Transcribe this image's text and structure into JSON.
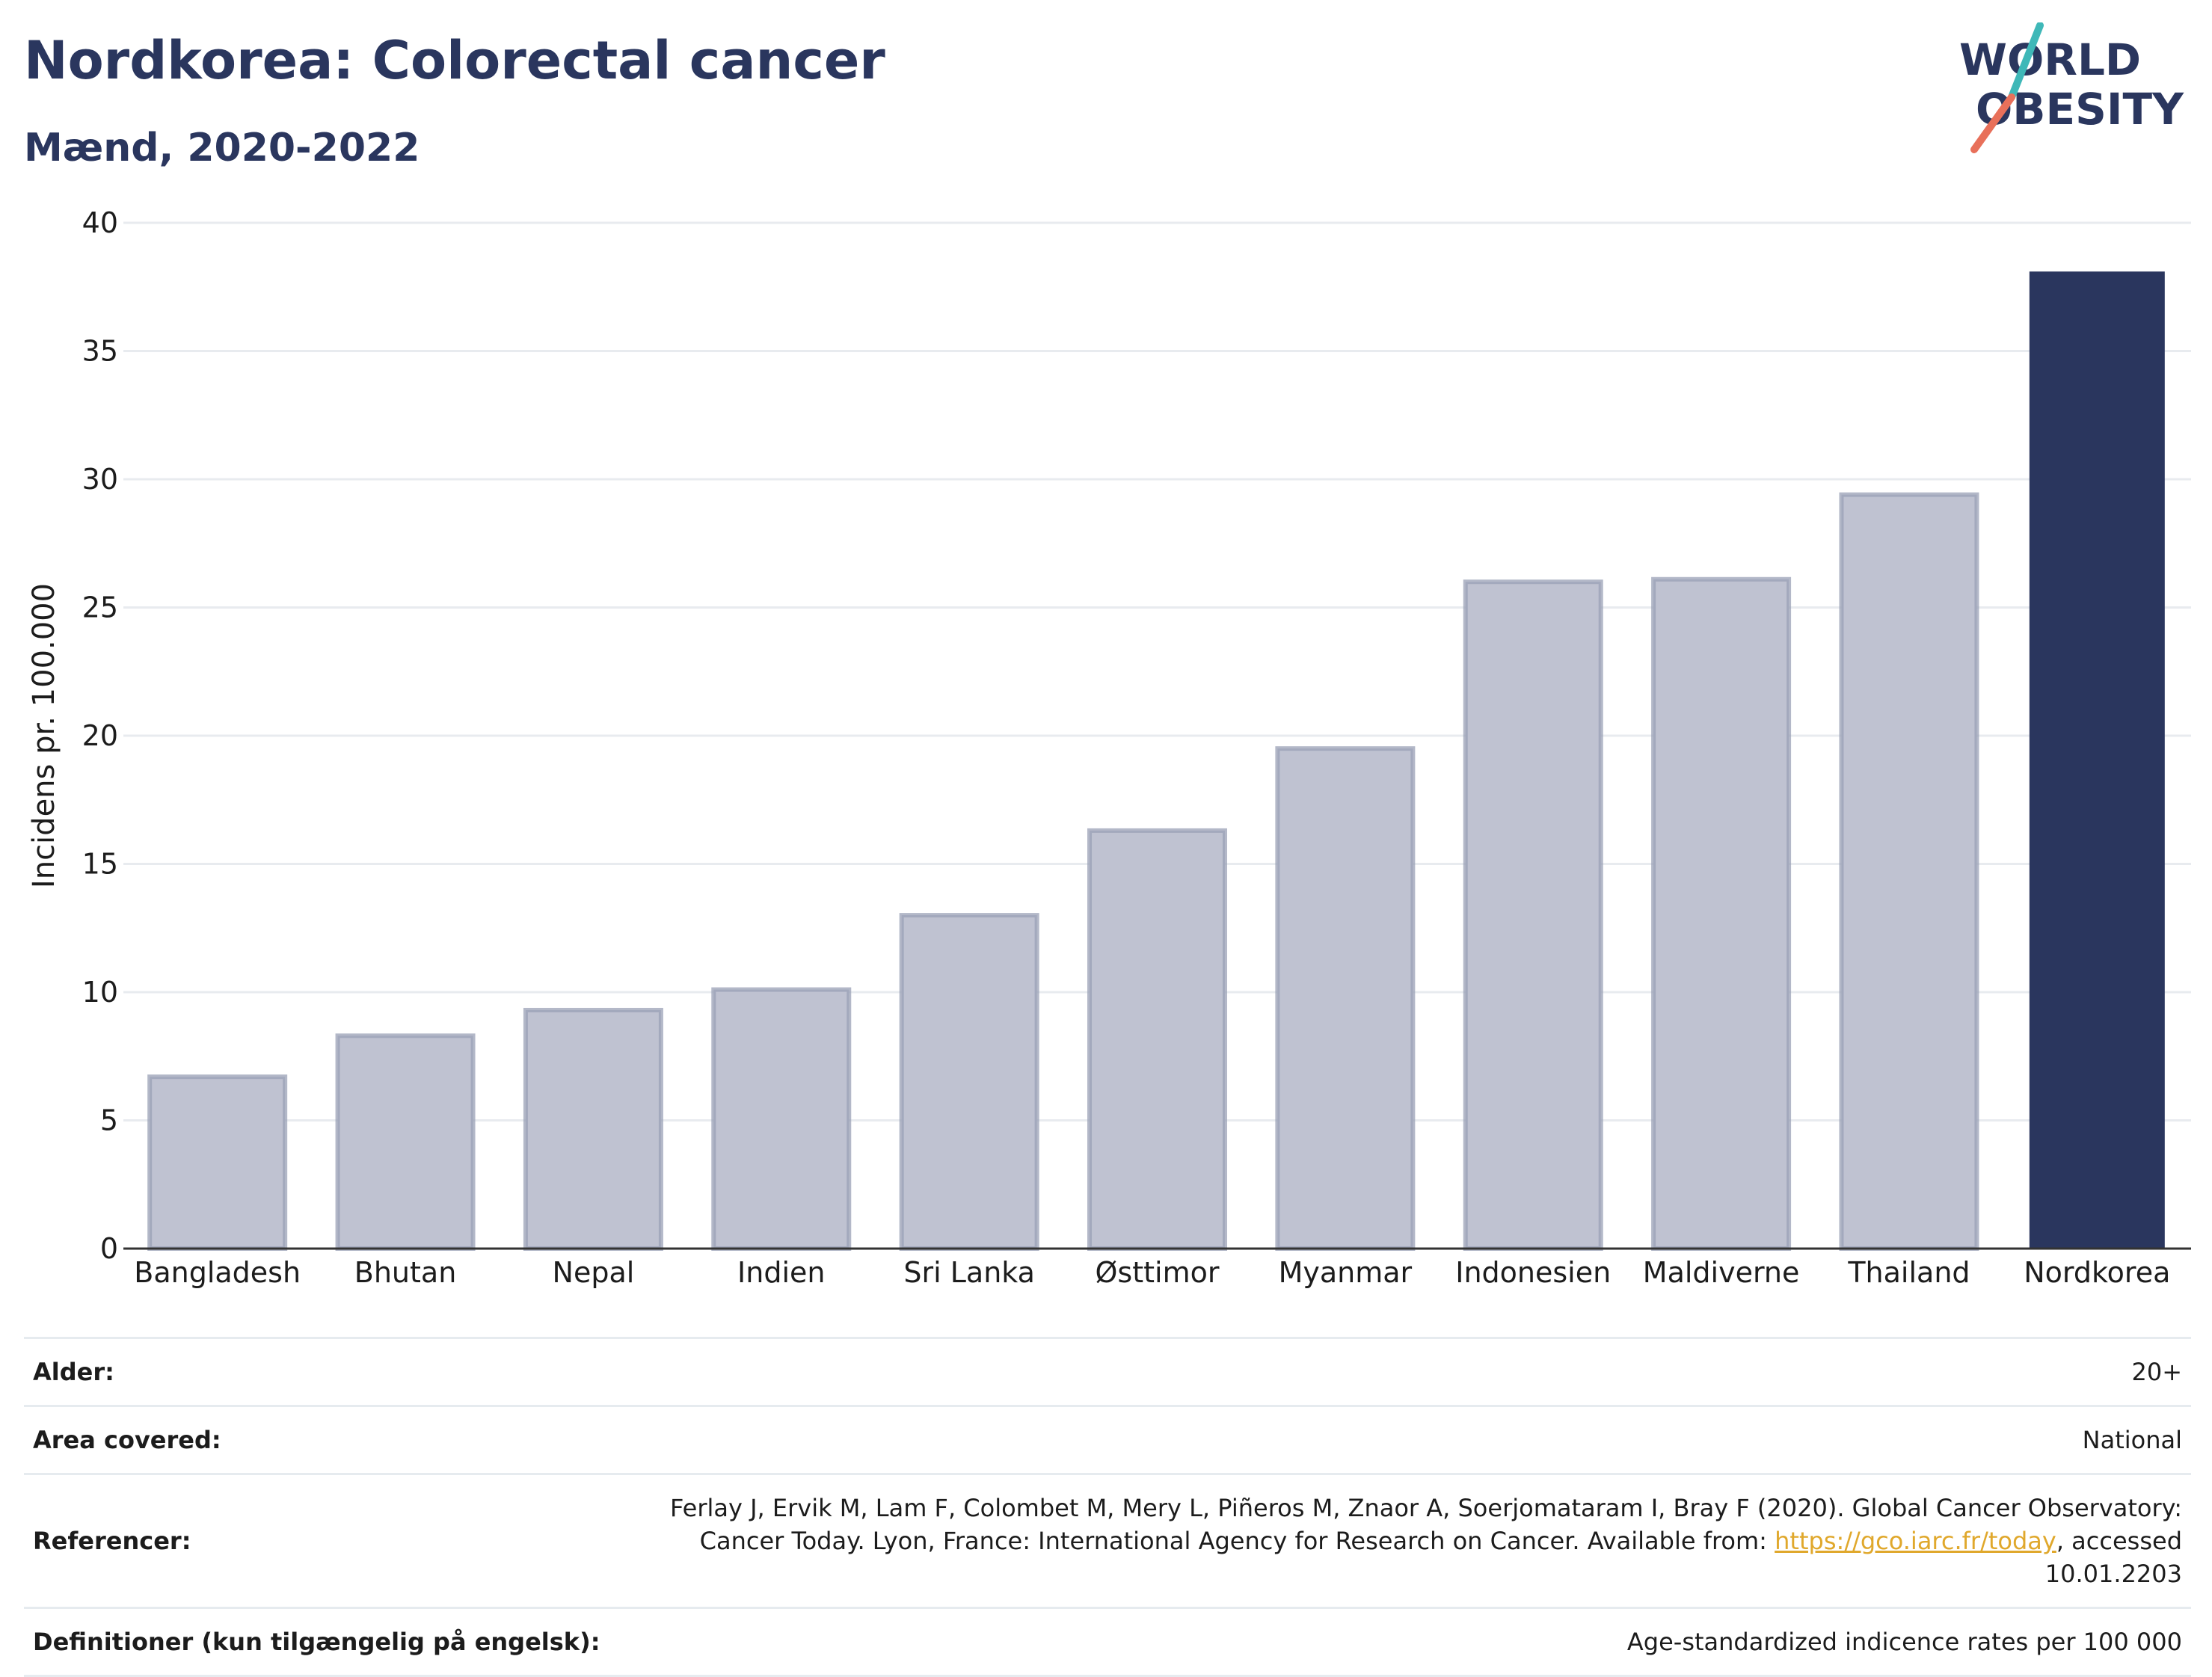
{
  "header": {
    "title": "Nordkorea: Colorectal cancer",
    "subtitle": "Mænd, 2020-2022"
  },
  "logo": {
    "line1": "WORLD",
    "line2": "OBESITY",
    "colors": {
      "text": "#2a365e",
      "slash_teal": "#3fb8b8",
      "slash_coral": "#e8705a"
    }
  },
  "chart_data": {
    "type": "bar",
    "title": "Nordkorea: Colorectal cancer",
    "subtitle": "Mænd, 2020-2022",
    "xlabel": "",
    "ylabel": "Incidens pr. 100.000",
    "ylim": [
      0,
      40
    ],
    "yticks": [
      0,
      5,
      10,
      15,
      20,
      25,
      30,
      35,
      40
    ],
    "grid": true,
    "categories": [
      "Bangladesh",
      "Bhutan",
      "Nepal",
      "Indien",
      "Sri Lanka",
      "Østtimor",
      "Myanmar",
      "Indonesien",
      "Maldiverne",
      "Thailand",
      "Nordkorea"
    ],
    "values": [
      6.7,
      8.3,
      9.3,
      10.1,
      13.0,
      16.3,
      19.5,
      26.0,
      26.1,
      29.4,
      38.1
    ],
    "highlight": "Nordkorea",
    "colors": {
      "bar": "#bfc2d1",
      "bar_edge": "#9aa0b6",
      "highlight": "#2a365e",
      "grid": "#e8ebef",
      "axis": "#333333"
    }
  },
  "info": [
    {
      "label": "Alder:",
      "value": "20+"
    },
    {
      "label": "Area covered:",
      "value": "National"
    },
    {
      "label": "Referencer:",
      "value": "Ferlay J, Ervik M, Lam F, Colombet M, Mery L, Piñeros M, Znaor A, Soerjomataram I, Bray F (2020). Global Cancer Observatory: Cancer Today. Lyon, France: International Agency for Research on Cancer. Available from: ",
      "link": "https://gco.iarc.fr/today",
      "value_after": ", accessed 10.01.2203"
    },
    {
      "label": "Definitioner (kun tilgængelig på engelsk):",
      "value": "Age-standardized indicence rates per 100 000"
    }
  ]
}
